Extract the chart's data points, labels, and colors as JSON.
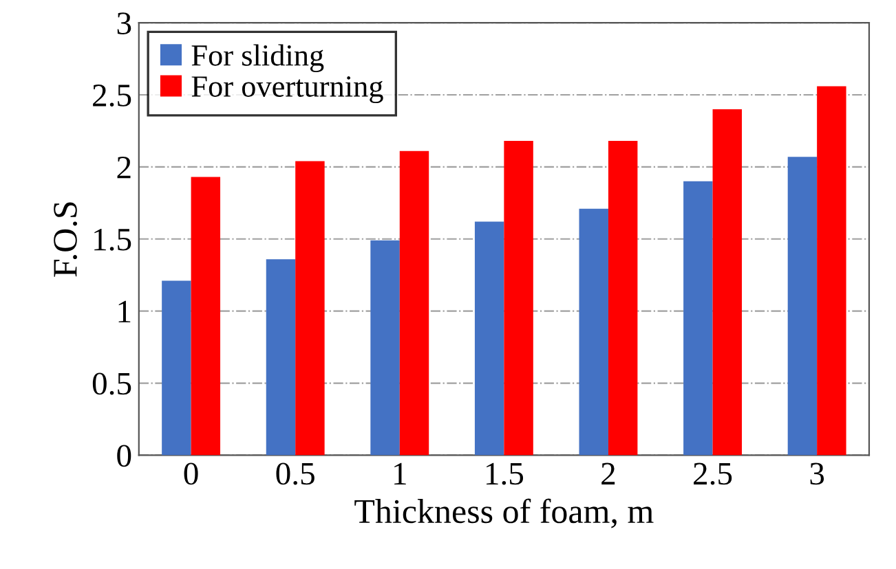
{
  "chart_data": {
    "type": "bar",
    "xlabel": "Thickness of foam, m",
    "ylabel": "F.O.S",
    "categories": [
      "0",
      "0.5",
      "1",
      "1.5",
      "2",
      "2.5",
      "3"
    ],
    "series": [
      {
        "name": "For sliding",
        "color": "#4472c4",
        "values": [
          1.21,
          1.36,
          1.49,
          1.62,
          1.71,
          1.9,
          2.07
        ]
      },
      {
        "name": "For overturning",
        "color": "#ff0000",
        "values": [
          1.93,
          2.04,
          2.11,
          2.18,
          2.18,
          2.4,
          2.56
        ]
      }
    ],
    "ylim": [
      0,
      3
    ],
    "yticks": [
      0,
      0.5,
      1,
      1.5,
      2,
      2.5,
      3
    ],
    "grid": "y",
    "legend": "top left"
  }
}
